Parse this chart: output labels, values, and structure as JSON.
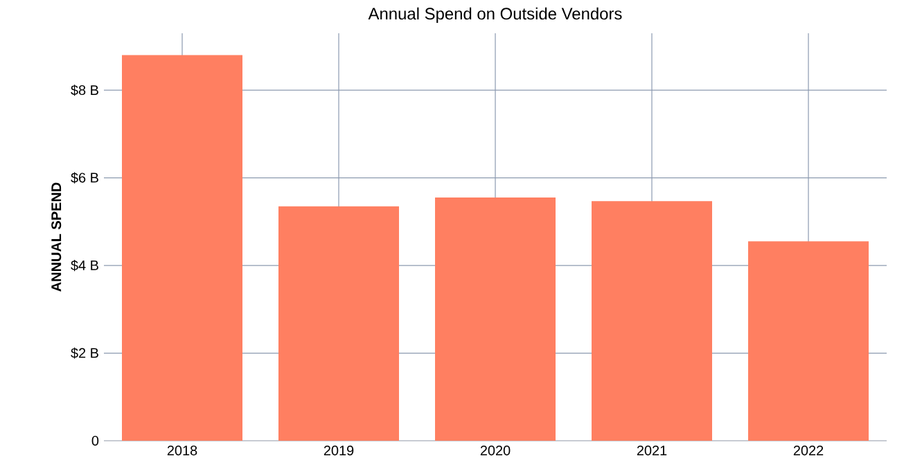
{
  "chart_data": {
    "type": "bar",
    "title": "Annual Spend on Outside Vendors",
    "ylabel": "ANNUAL SPEND",
    "categories": [
      "2018",
      "2019",
      "2020",
      "2021",
      "2022"
    ],
    "values": [
      8.8,
      5.35,
      5.55,
      5.47,
      4.55
    ],
    "color": "#ff7f61",
    "ylim": [
      0,
      9.3
    ],
    "yticks": [
      0,
      {
        "value": 2,
        "label": "$2 B"
      },
      {
        "value": 4,
        "label": "$4 B"
      },
      {
        "value": 6,
        "label": "$6 B"
      },
      {
        "value": 8,
        "label": "$8 B"
      }
    ],
    "grid": true
  }
}
